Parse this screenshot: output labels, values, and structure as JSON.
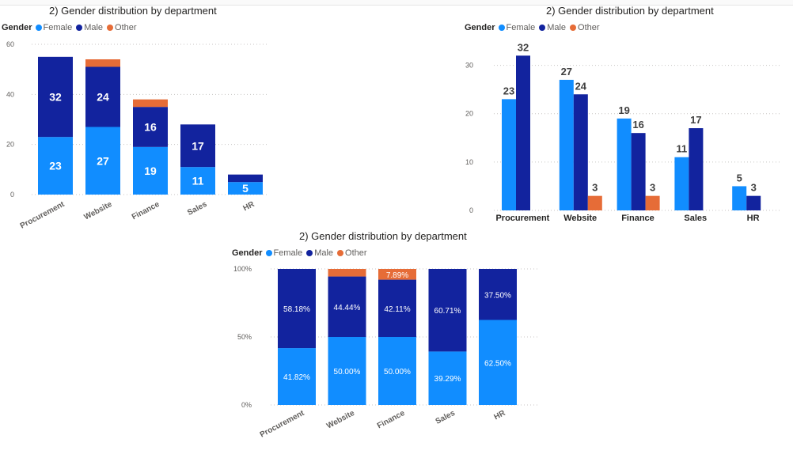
{
  "colors": {
    "female": "#118DFF",
    "male": "#12239E",
    "other": "#E66C37"
  },
  "charts": [
    {
      "title": "2) Gender distribution by department",
      "legend_title": "Gender",
      "legend_items": [
        "Female",
        "Male",
        "Other"
      ]
    },
    {
      "title": "2) Gender distribution by department",
      "legend_title": "Gender",
      "legend_items": [
        "Female",
        "Male",
        "Other"
      ]
    },
    {
      "title": "2) Gender distribution by department",
      "legend_title": "Gender",
      "legend_items": [
        "Female",
        "Male",
        "Other"
      ]
    }
  ],
  "chart_data": [
    {
      "type": "bar",
      "variant": "stacked-column",
      "title": "2) Gender distribution by department",
      "categories": [
        "Procurement",
        "Website",
        "Finance",
        "Sales",
        "HR"
      ],
      "series": [
        {
          "name": "Female",
          "values": [
            23,
            27,
            19,
            11,
            5
          ]
        },
        {
          "name": "Male",
          "values": [
            32,
            24,
            16,
            17,
            3
          ]
        },
        {
          "name": "Other",
          "values": [
            0,
            3,
            3,
            0,
            0
          ]
        }
      ],
      "data_labels": {
        "Female": [
          "23",
          "27",
          "19",
          "11",
          "5"
        ],
        "Male": [
          "32",
          "24",
          "16",
          "17",
          ""
        ],
        "Other": [
          "",
          "",
          "",
          "",
          ""
        ]
      },
      "yticks": [
        "0",
        "20",
        "40",
        "60"
      ],
      "ylim": [
        0,
        60
      ],
      "grid": true,
      "legend": "top-left"
    },
    {
      "type": "bar",
      "variant": "clustered-column",
      "title": "2) Gender distribution by department",
      "categories": [
        "Procurement",
        "Website",
        "Finance",
        "Sales",
        "HR"
      ],
      "series": [
        {
          "name": "Female",
          "values": [
            23,
            27,
            19,
            11,
            5
          ]
        },
        {
          "name": "Male",
          "values": [
            32,
            24,
            16,
            17,
            3
          ]
        },
        {
          "name": "Other",
          "values": [
            0,
            3,
            3,
            0,
            0
          ]
        }
      ],
      "data_labels": {
        "Female": [
          "23",
          "27",
          "19",
          "11",
          "5"
        ],
        "Male": [
          "32",
          "24",
          "16",
          "17",
          "3"
        ],
        "Other": [
          "",
          "3",
          "3",
          "",
          ""
        ]
      },
      "yticks": [
        "0",
        "10",
        "20",
        "30"
      ],
      "ylim": [
        0,
        35
      ],
      "grid": true,
      "legend": "top-left"
    },
    {
      "type": "bar",
      "variant": "100%-stacked-column",
      "title": "2) Gender distribution by department",
      "categories": [
        "Procurement",
        "Website",
        "Finance",
        "Sales",
        "HR"
      ],
      "series": [
        {
          "name": "Female",
          "values": [
            41.82,
            50.0,
            50.0,
            39.29,
            62.5
          ]
        },
        {
          "name": "Male",
          "values": [
            58.18,
            44.44,
            42.11,
            60.71,
            37.5
          ]
        },
        {
          "name": "Other",
          "values": [
            0,
            5.56,
            7.89,
            0,
            0
          ]
        }
      ],
      "data_labels": {
        "Female": [
          "41.82%",
          "50.00%",
          "50.00%",
          "39.29%",
          "62.50%"
        ],
        "Male": [
          "58.18%",
          "44.44%",
          "42.11%",
          "60.71%",
          "37.50%"
        ],
        "Other": [
          "",
          "",
          "7.89%",
          "",
          ""
        ]
      },
      "yticks": [
        "0%",
        "50%",
        "100%"
      ],
      "ylim": [
        0,
        100
      ],
      "grid": true,
      "legend": "top-left"
    }
  ]
}
